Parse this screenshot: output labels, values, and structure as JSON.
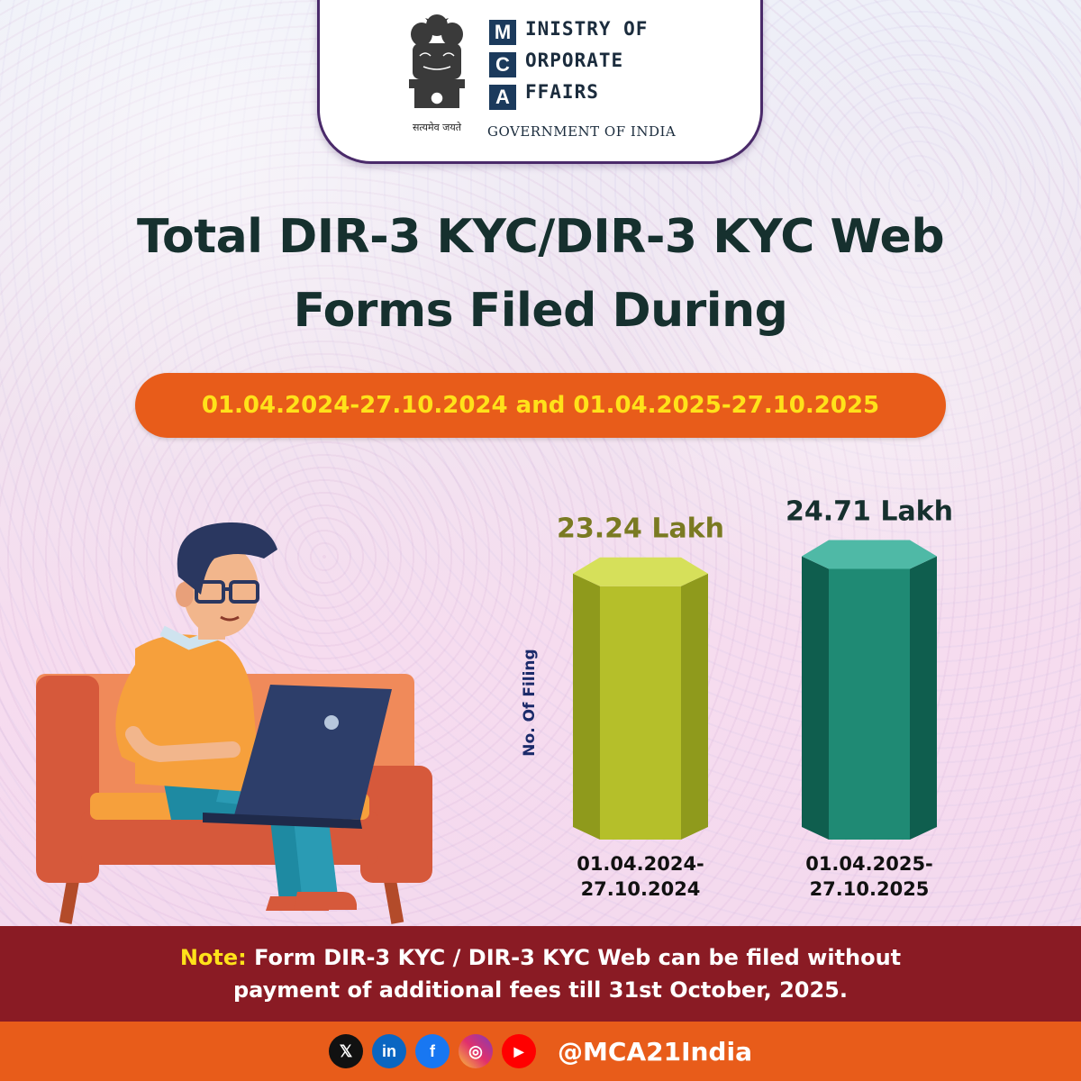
{
  "header": {
    "emblem_caption": "सत्यमेव जयते",
    "logo_letters": [
      "M",
      "C",
      "A"
    ],
    "logo_words": [
      "INISTRY OF",
      "ORPORATE",
      "FFAIRS"
    ],
    "government": "GOVERNMENT OF INDIA"
  },
  "title_lines": [
    "Total DIR-3 KYC/DIR-3 KYC Web",
    "Forms Filed During"
  ],
  "period": "01.04.2024-27.10.2024 and 01.04.2025-27.10.2025",
  "chart_data": {
    "type": "bar",
    "ylabel": "No. Of Filing",
    "xlabel": "",
    "ylim": [
      0,
      25
    ],
    "categories": [
      {
        "line1": "01.04.2024-",
        "line2": "27.10.2024"
      },
      {
        "line1": "01.04.2025-",
        "line2": "27.10.2025"
      }
    ],
    "values": [
      23.24,
      24.71
    ],
    "value_labels": [
      "23.24 Lakh",
      "24.71 Lakh"
    ],
    "unit": "Lakh",
    "colors": {
      "bar1_front": "#b5bf2a",
      "bar1_side": "#8f9a1c",
      "bar1_top": "#d6e05a",
      "label1": "#7a7a22",
      "bar2_front": "#1f8a74",
      "bar2_side": "#0f5e4e",
      "bar2_top": "#4fb9a6",
      "label2": "#16302e"
    }
  },
  "note": {
    "label": "Note:",
    "text": " Form DIR-3 KYC / DIR-3 KYC Web can be filed without payment of additional fees till 31st October, 2025."
  },
  "footer": {
    "icons": [
      "x-icon",
      "linkedin-icon",
      "facebook-icon",
      "instagram-icon",
      "youtube-icon"
    ],
    "icon_glyphs": [
      "𝕏",
      "in",
      "f",
      "◎",
      "▶"
    ],
    "handle": "@MCA21India"
  },
  "colors": {
    "title": "#16302e",
    "pill": "#e85c1a",
    "pill_text": "#ffe21a",
    "note_band": "#8a1b24",
    "footer": "#e85c1a"
  }
}
